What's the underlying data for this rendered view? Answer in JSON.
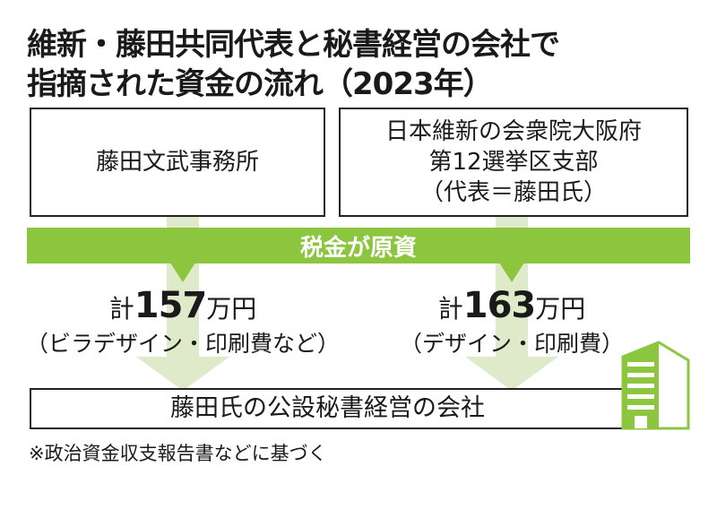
{
  "title": {
    "line1": "維新・藤田共同代表と秘書経営の会社で",
    "line2": "指摘された資金の流れ（2023年）"
  },
  "sources": [
    {
      "lines": [
        "藤田文武事務所"
      ]
    },
    {
      "lines": [
        "日本維新の会衆院大阪府",
        "第12選挙区支部",
        "（代表＝藤田氏）"
      ]
    }
  ],
  "funding_bar": "税金が原資",
  "flows": [
    {
      "prefix": "計",
      "amount": "157",
      "unit": "万円",
      "detail": "（ビラデザイン・印刷費など）"
    },
    {
      "prefix": "計",
      "amount": "163",
      "unit": "万円",
      "detail": "（デザイン・印刷費）"
    }
  ],
  "destination": "藤田氏の公設秘書経営の会社",
  "footnote": "※政治資金収支報告書などに基づく",
  "icons": [
    "building-icon"
  ],
  "colors": {
    "green": "#8cc63e",
    "light_green": "#dfeacb"
  }
}
